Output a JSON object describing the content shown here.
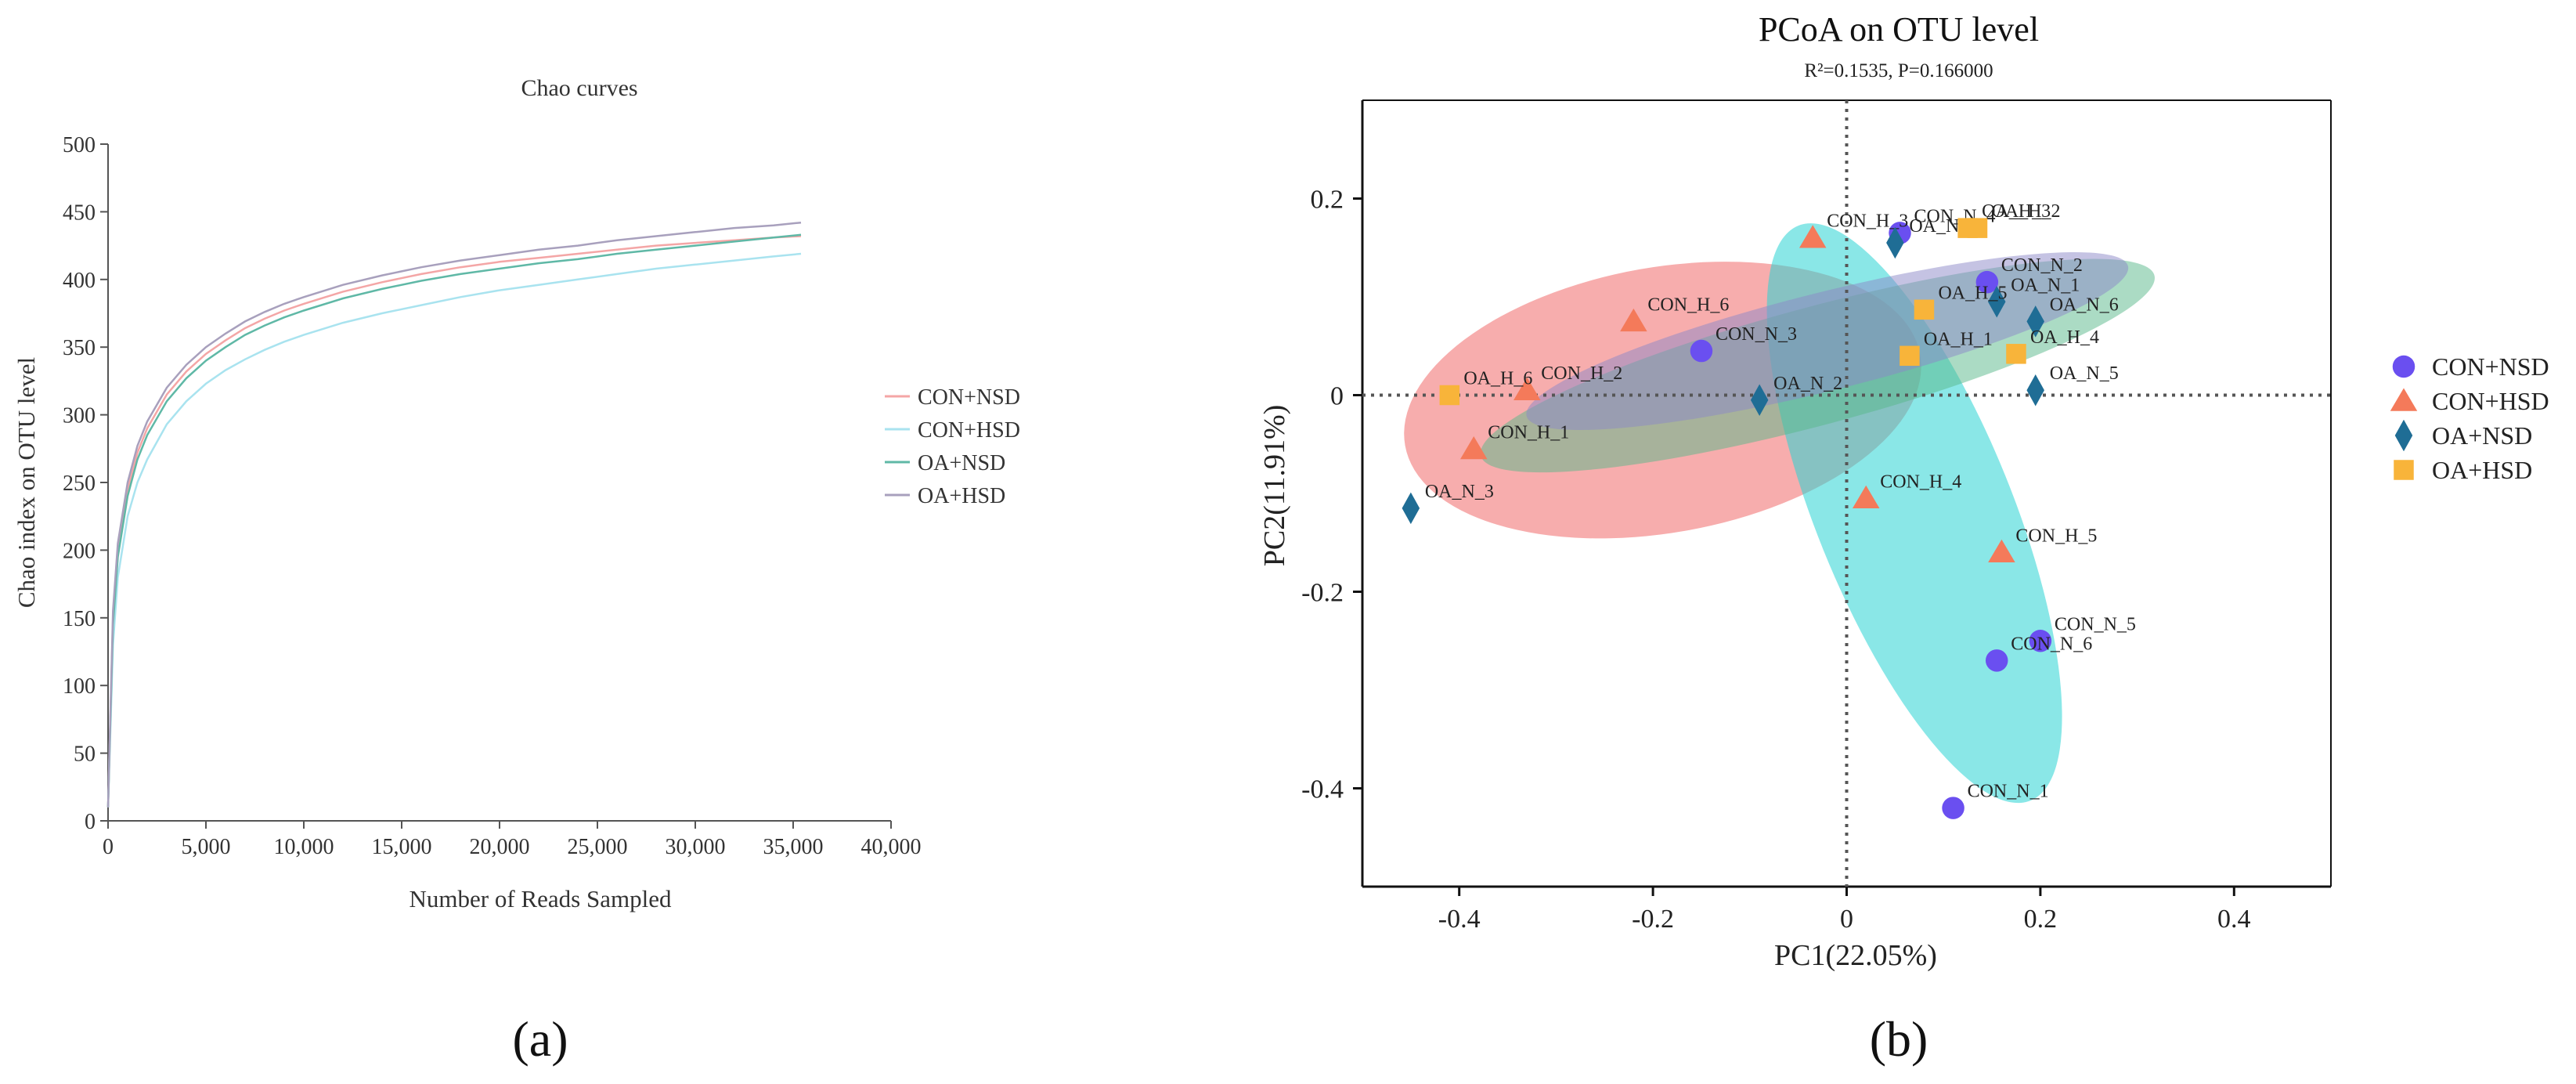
{
  "panel_labels": [
    "(a)",
    "(b)"
  ],
  "chart_data": [
    {
      "type": "line",
      "title": "Chao curves",
      "xlabel": "Number of Reads Sampled",
      "ylabel": "Chao index on OTU level",
      "xlim": [
        0,
        40000
      ],
      "ylim": [
        0,
        500
      ],
      "x_ticks": [
        0,
        5000,
        10000,
        15000,
        20000,
        25000,
        30000,
        35000,
        40000
      ],
      "x_tick_labels": [
        "0",
        "5,000",
        "10,000",
        "15,000",
        "20,000",
        "25,000",
        "30,000",
        "35,000",
        "40,000"
      ],
      "y_ticks": [
        0,
        50,
        100,
        150,
        200,
        250,
        300,
        350,
        400,
        450,
        500
      ],
      "y_tick_labels": [
        "0",
        "50",
        "100",
        "150",
        "200",
        "250",
        "300",
        "350",
        "400",
        "450",
        "500"
      ],
      "x": [
        0,
        250,
        500,
        1000,
        1500,
        2000,
        3000,
        4000,
        5000,
        6000,
        7000,
        8000,
        9000,
        10000,
        12000,
        14000,
        16000,
        18000,
        20000,
        22000,
        24000,
        26000,
        28000,
        30000,
        32000,
        34000,
        35400
      ],
      "series": [
        {
          "name": "CON+NSD",
          "color": "#f4a6a6",
          "values": [
            10,
            150,
            200,
            245,
            272,
            290,
            315,
            332,
            345,
            355,
            364,
            371,
            377,
            382,
            391,
            398,
            404,
            409,
            413,
            416,
            419,
            422,
            425,
            427,
            429,
            431,
            432
          ]
        },
        {
          "name": "CON+HSD",
          "color": "#a9e3ef",
          "values": [
            10,
            130,
            180,
            225,
            250,
            267,
            293,
            310,
            323,
            333,
            341,
            348,
            354,
            359,
            368,
            375,
            381,
            387,
            392,
            396,
            400,
            404,
            408,
            411,
            414,
            417,
            419
          ]
        },
        {
          "name": "OA+NSD",
          "color": "#5fb8a6",
          "values": [
            10,
            145,
            195,
            240,
            267,
            285,
            310,
            327,
            340,
            350,
            359,
            366,
            372,
            377,
            386,
            393,
            399,
            404,
            408,
            412,
            415,
            419,
            422,
            425,
            428,
            431,
            433
          ]
        },
        {
          "name": "OA+HSD",
          "color": "#a8a0bd",
          "values": [
            10,
            155,
            205,
            250,
            277,
            295,
            320,
            337,
            350,
            360,
            369,
            376,
            382,
            387,
            396,
            403,
            409,
            414,
            418,
            422,
            425,
            429,
            432,
            435,
            438,
            440,
            442
          ]
        }
      ],
      "legend": {
        "position": "right",
        "entries": [
          "CON+NSD",
          "CON+HSD",
          "OA+NSD",
          "OA+HSD"
        ]
      }
    },
    {
      "type": "scatter",
      "title": "PCoA on OTU level",
      "subtitle": "R²=0.1535, P=0.166000",
      "xlabel": "PC1(22.05%)",
      "ylabel": "PC2(11.91%)",
      "xlim": [
        -0.5,
        0.5
      ],
      "ylim": [
        -0.5,
        0.3
      ],
      "x_ticks": [
        -0.4,
        -0.2,
        0,
        0.2,
        0.4
      ],
      "x_tick_labels": [
        "-0.4",
        "-0.2",
        "0",
        "0.2",
        "0.4"
      ],
      "y_ticks": [
        -0.4,
        -0.2,
        0,
        0.2
      ],
      "y_tick_labels": [
        "-0.4",
        "-0.2",
        "0",
        "0.2"
      ],
      "groups": [
        {
          "name": "CON+NSD",
          "color": "#6a4ff0",
          "marker": "circle",
          "ellipse_color": "#2ad4d4"
        },
        {
          "name": "CON+HSD",
          "color": "#f47a5a",
          "marker": "triangle",
          "ellipse_color": "#f06a6a"
        },
        {
          "name": "OA+NSD",
          "color": "#1f6d95",
          "marker": "diamond",
          "ellipse_color": "#58b88a"
        },
        {
          "name": "OA+HSD",
          "color": "#f8b43a",
          "marker": "square",
          "ellipse_color": "#8c88c8"
        }
      ],
      "ellipses": [
        {
          "group": "CON+HSD",
          "cx": -0.19,
          "cy": -0.005,
          "rx": 0.27,
          "ry": 0.135,
          "angle_deg": 10,
          "opacity": 0.55
        },
        {
          "group": "CON+NSD",
          "cx": 0.07,
          "cy": -0.12,
          "rx": 0.32,
          "ry": 0.1,
          "angle_deg": -68,
          "opacity": 0.55
        },
        {
          "group": "OA+NSD",
          "cx": -0.03,
          "cy": 0.03,
          "rx": 0.36,
          "ry": 0.06,
          "angle_deg": 15,
          "opacity": 0.5
        },
        {
          "group": "OA+HSD",
          "cx": -0.02,
          "cy": 0.055,
          "rx": 0.32,
          "ry": 0.05,
          "angle_deg": 14,
          "opacity": 0.5
        }
      ],
      "points": [
        {
          "group": "CON+NSD",
          "label": "CON_N_1",
          "x": 0.11,
          "y": -0.42
        },
        {
          "group": "CON+NSD",
          "label": "CON_N_2",
          "x": 0.145,
          "y": 0.115
        },
        {
          "group": "CON+NSD",
          "label": "CON_N_3",
          "x": -0.15,
          "y": 0.045
        },
        {
          "group": "CON+NSD",
          "label": "CON_N_4",
          "x": 0.055,
          "y": 0.165
        },
        {
          "group": "CON+NSD",
          "label": "CON_N_5",
          "x": 0.2,
          "y": -0.25
        },
        {
          "group": "CON+NSD",
          "label": "CON_N_6",
          "x": 0.155,
          "y": -0.27
        },
        {
          "group": "CON+HSD",
          "label": "CON_H_1",
          "x": -0.385,
          "y": -0.055
        },
        {
          "group": "CON+HSD",
          "label": "CON_H_2",
          "x": -0.33,
          "y": 0.005
        },
        {
          "group": "CON+HSD",
          "label": "CON_H_3",
          "x": -0.035,
          "y": 0.16
        },
        {
          "group": "CON+HSD",
          "label": "CON_H_4",
          "x": 0.02,
          "y": -0.105
        },
        {
          "group": "CON+HSD",
          "label": "CON_H_5",
          "x": 0.16,
          "y": -0.16
        },
        {
          "group": "CON+HSD",
          "label": "CON_H_6",
          "x": -0.22,
          "y": 0.075
        },
        {
          "group": "OA+NSD",
          "label": "OA_N_1",
          "x": 0.155,
          "y": 0.095
        },
        {
          "group": "OA+NSD",
          "label": "OA_N_2",
          "x": -0.09,
          "y": -0.005
        },
        {
          "group": "OA+NSD",
          "label": "OA_N_3",
          "x": -0.45,
          "y": -0.115
        },
        {
          "group": "OA+NSD",
          "label": "OA_N_4",
          "x": 0.05,
          "y": 0.155
        },
        {
          "group": "OA+NSD",
          "label": "OA_N_5",
          "x": 0.195,
          "y": 0.005
        },
        {
          "group": "OA+NSD",
          "label": "OA_N_6",
          "x": 0.195,
          "y": 0.075
        },
        {
          "group": "OA+HSD",
          "label": "OA_H_1",
          "x": 0.065,
          "y": 0.04
        },
        {
          "group": "OA+HSD",
          "label": "OA_H_2",
          "x": 0.135,
          "y": 0.17
        },
        {
          "group": "OA+HSD",
          "label": "OA_H_3",
          "x": 0.125,
          "y": 0.17
        },
        {
          "group": "OA+HSD",
          "label": "OA_H_4",
          "x": 0.175,
          "y": 0.042
        },
        {
          "group": "OA+HSD",
          "label": "OA_H_5",
          "x": 0.08,
          "y": 0.087
        },
        {
          "group": "OA+HSD",
          "label": "OA_H_6",
          "x": -0.41,
          "y": 0.0
        }
      ],
      "reference_lines": {
        "x": 0,
        "y": 0,
        "style": "dotted"
      },
      "legend": {
        "position": "right",
        "entries": [
          "CON+NSD",
          "CON+HSD",
          "OA+NSD",
          "OA+HSD"
        ]
      }
    }
  ]
}
